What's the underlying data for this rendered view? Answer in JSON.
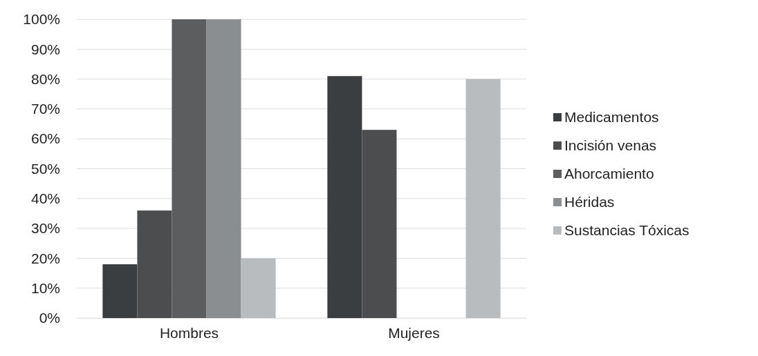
{
  "chart_data": {
    "type": "bar",
    "categories": [
      "Hombres",
      "Mujeres"
    ],
    "series": [
      {
        "name": "Medicamentos",
        "color": "#3b3e40",
        "values": [
          18,
          81
        ]
      },
      {
        "name": "Incisión venas",
        "color": "#4b4d4f",
        "values": [
          36,
          63
        ]
      },
      {
        "name": "Ahorcamiento",
        "color": "#5b5d5f",
        "values": [
          100,
          0
        ]
      },
      {
        "name": "Héridas",
        "color": "#8b8e91",
        "values": [
          100,
          0
        ]
      },
      {
        "name": "Sustancias Tóxicas",
        "color": "#b9bcbf",
        "values": [
          20,
          80
        ]
      }
    ],
    "ylim": [
      0,
      100
    ],
    "yticks": [
      {
        "value": 0,
        "label": "0%"
      },
      {
        "value": 10,
        "label": "10%"
      },
      {
        "value": 20,
        "label": "20%"
      },
      {
        "value": 30,
        "label": "30%"
      },
      {
        "value": 40,
        "label": "40%"
      },
      {
        "value": 50,
        "label": "50%"
      },
      {
        "value": 60,
        "label": "60%"
      },
      {
        "value": 70,
        "label": "70%"
      },
      {
        "value": 80,
        "label": "80%"
      },
      {
        "value": 90,
        "label": "90%"
      },
      {
        "value": 100,
        "label": "100%"
      }
    ],
    "grid": "y",
    "legend": "right"
  }
}
